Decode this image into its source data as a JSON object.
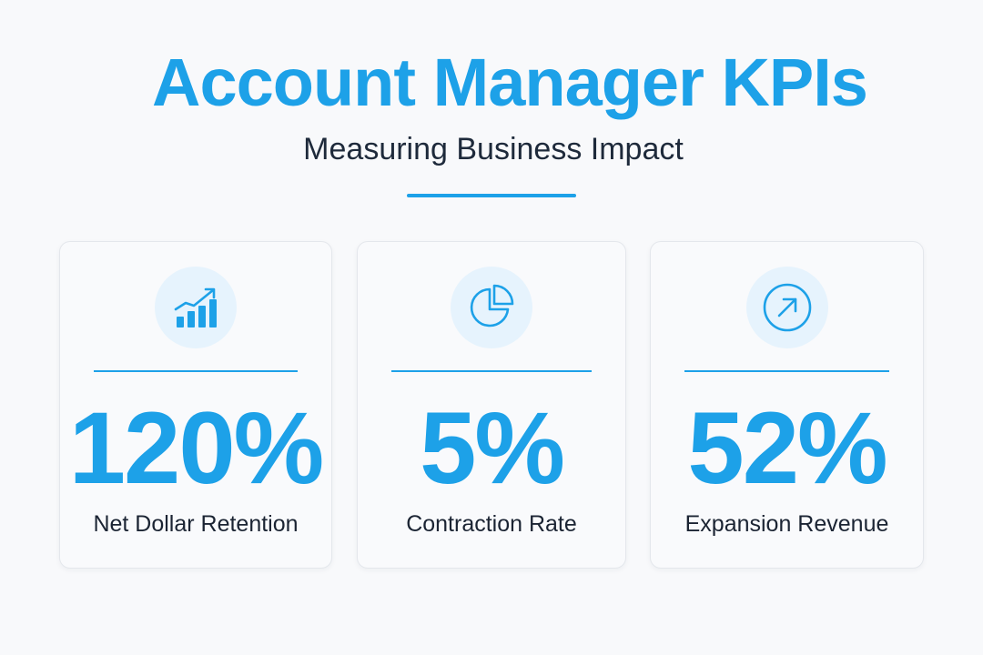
{
  "header": {
    "title": "Account Manager KPIs",
    "subtitle": "Measuring Business Impact"
  },
  "colors": {
    "accent": "#1da1e8",
    "icon_bg": "#e6f3fd",
    "text_dark": "#1e2a3b",
    "background": "#f8f9fb"
  },
  "kpis": [
    {
      "value": "120%",
      "label": "Net Dollar Retention",
      "icon": "trending-up-bar-chart-icon"
    },
    {
      "value": "5%",
      "label": "Contraction Rate",
      "icon": "pie-chart-icon"
    },
    {
      "value": "52%",
      "label": "Expansion Revenue",
      "icon": "arrow-up-right-circle-icon"
    }
  ]
}
